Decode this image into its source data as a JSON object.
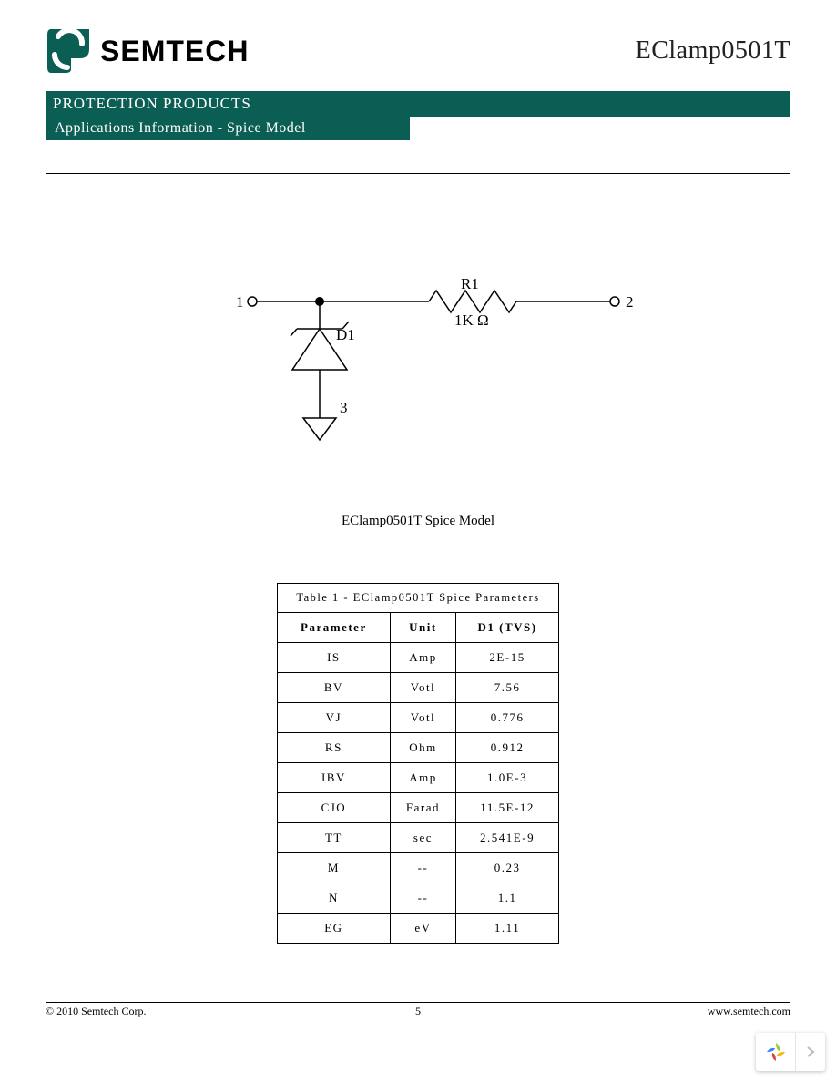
{
  "header": {
    "brand": "SEMTECH",
    "part_number": "EClamp0501T"
  },
  "bands": {
    "category": "PROTECTION PRODUCTS",
    "section": "Applications Information - Spice Model"
  },
  "diagram": {
    "caption": "EClamp0501T Spice Model",
    "nodes": {
      "n1": "1",
      "n2": "2",
      "n3": "3"
    },
    "components": {
      "r_label": "R1",
      "r_value": "1K Ω",
      "d_label": "D1"
    },
    "colors": {
      "stroke": "#000000",
      "fill_node": "#000000",
      "bg": "#ffffff"
    }
  },
  "table": {
    "title": "Table 1 - EClamp0501T Spice Parameters",
    "columns": [
      "Parameter",
      "Unit",
      "D1 (TVS)"
    ],
    "rows": [
      [
        "IS",
        "Amp",
        "2E-15"
      ],
      [
        "BV",
        "Votl",
        "7.56"
      ],
      [
        "VJ",
        "Votl",
        "0.776"
      ],
      [
        "RS",
        "Ohm",
        "0.912"
      ],
      [
        "IBV",
        "Amp",
        "1.0E-3"
      ],
      [
        "CJO",
        "Farad",
        "11.5E-12"
      ],
      [
        "TT",
        "sec",
        "2.541E-9"
      ],
      [
        "M",
        "--",
        "0.23"
      ],
      [
        "N",
        "--",
        "1.1"
      ],
      [
        "EG",
        "eV",
        "1.11"
      ]
    ]
  },
  "footer": {
    "copyright": "© 2010 Semtech Corp.",
    "page": "5",
    "url": "www.semtech.com"
  },
  "palette": {
    "brand_green": "#0b5e53",
    "text": "#000000",
    "bg": "#ffffff"
  }
}
